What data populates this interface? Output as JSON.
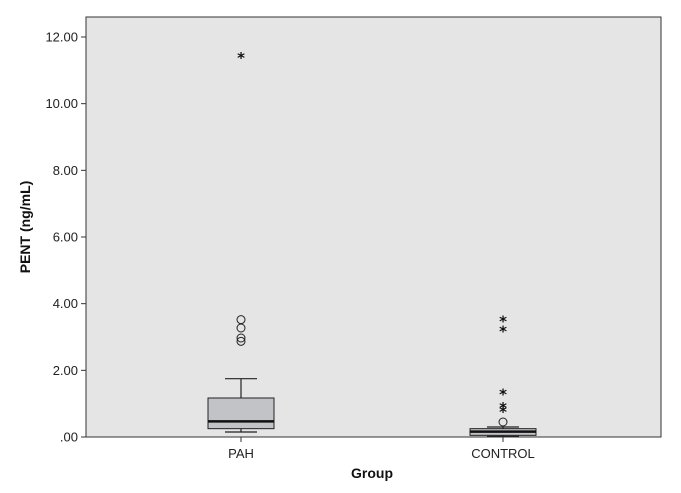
{
  "chart_data": {
    "type": "boxplot",
    "xlabel": "Group",
    "ylabel": "PENT (ng/mL)",
    "ylim": [
      0,
      12.6
    ],
    "yticks": [
      0,
      2,
      4,
      6,
      8,
      10,
      12
    ],
    "ytick_labels": [
      ".00",
      "2.00",
      "4.00",
      "6.00",
      "8.00",
      "10.00",
      "12.00"
    ],
    "categories": [
      "PAH",
      "CONTROL"
    ],
    "grid": false,
    "background": "#e5e5e5",
    "box_color": "#c2c3c7",
    "groups": [
      {
        "name": "PAH",
        "whisker_low": 0.15,
        "q1": 0.25,
        "median": 0.47,
        "q3": 1.17,
        "whisker_high": 1.75,
        "outliers_circle": [
          3.52,
          3.27,
          2.97,
          2.87
        ],
        "outliers_extreme": [
          11.4
        ]
      },
      {
        "name": "CONTROL",
        "whisker_low": 0.02,
        "q1": 0.05,
        "median": 0.16,
        "q3": 0.25,
        "whisker_high": 0.3,
        "outliers_circle": [
          0.45
        ],
        "outliers_extreme": [
          3.5,
          3.2,
          1.3,
          0.9,
          0.78
        ]
      }
    ]
  }
}
